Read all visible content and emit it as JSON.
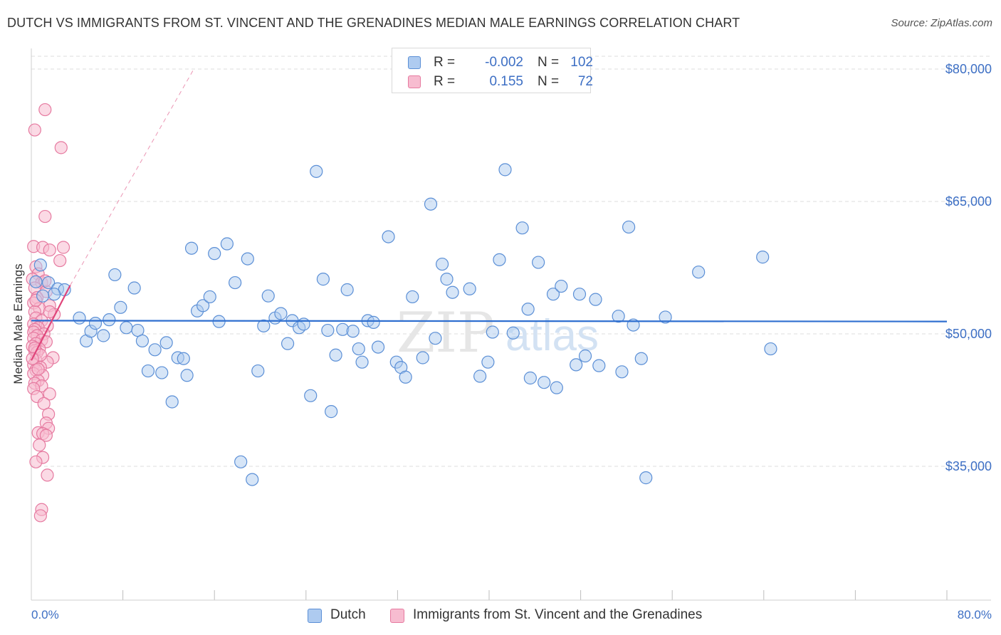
{
  "title": "DUTCH VS IMMIGRANTS FROM ST. VINCENT AND THE GRENADINES MEDIAN MALE EARNINGS CORRELATION CHART",
  "source": "Source: ZipAtlas.com",
  "watermark": {
    "part1": "ZIP",
    "part2": "atlas"
  },
  "legend": {
    "rows": [
      {
        "r_label": "R =",
        "r_value": "-0.002",
        "n_label": "N =",
        "n_value": "102"
      },
      {
        "r_label": "R =",
        "r_value": "0.155",
        "n_label": "N =",
        "n_value": "72"
      }
    ]
  },
  "bottom_legend": {
    "dutch": "Dutch",
    "immigrants": "Immigrants from St. Vincent and the Grenadines"
  },
  "colors": {
    "dutch_fill": "#aecbf0",
    "dutch_stroke": "#5b8fd6",
    "dutch_line": "#2f6fd0",
    "immig_fill": "#f7bcd0",
    "immig_stroke": "#e67aa0",
    "immig_line": "#e0457a",
    "grid": "#dcdcdc",
    "tick_text": "#3d6fc4"
  },
  "chart_data": {
    "type": "scatter",
    "title": "DUTCH VS IMMIGRANTS FROM ST. VINCENT AND THE GRENADINES MEDIAN MALE EARNINGS CORRELATION CHART",
    "xlabel": "",
    "ylabel": "Median Male Earnings",
    "xlim": [
      0,
      80
    ],
    "ylim": [
      20000,
      83000
    ],
    "x_tick_labels": [
      "0.0%",
      "80.0%"
    ],
    "y_ticks": [
      35000,
      50000,
      65000,
      80000
    ],
    "y_tick_labels": [
      "$35,000",
      "$50,000",
      "$65,000",
      "$80,000"
    ],
    "grid": true,
    "legend_position": "top-center",
    "series": [
      {
        "name": "Dutch",
        "color": "#5b8fd6",
        "trend": {
          "x": [
            0,
            80
          ],
          "y": [
            51500,
            51400
          ]
        },
        "points": [
          [
            0.8,
            57800
          ],
          [
            1.5,
            55800
          ],
          [
            2.3,
            55100
          ],
          [
            2.9,
            55000
          ],
          [
            2.0,
            54500
          ],
          [
            4.2,
            51800
          ],
          [
            4.8,
            49200
          ],
          [
            5.2,
            50300
          ],
          [
            5.6,
            51200
          ],
          [
            6.3,
            49800
          ],
          [
            6.8,
            51600
          ],
          [
            7.3,
            56700
          ],
          [
            7.8,
            53000
          ],
          [
            8.3,
            50700
          ],
          [
            9.0,
            55200
          ],
          [
            9.3,
            50400
          ],
          [
            9.7,
            49200
          ],
          [
            10.2,
            45800
          ],
          [
            10.8,
            48200
          ],
          [
            11.4,
            45600
          ],
          [
            11.8,
            49000
          ],
          [
            12.3,
            42300
          ],
          [
            12.8,
            47300
          ],
          [
            13.3,
            47200
          ],
          [
            13.6,
            45300
          ],
          [
            14.0,
            59700
          ],
          [
            14.5,
            52600
          ],
          [
            15.0,
            53200
          ],
          [
            15.6,
            54200
          ],
          [
            16.0,
            59100
          ],
          [
            16.4,
            51400
          ],
          [
            17.1,
            60200
          ],
          [
            17.8,
            55800
          ],
          [
            18.3,
            35500
          ],
          [
            18.9,
            58500
          ],
          [
            19.3,
            33500
          ],
          [
            19.8,
            45800
          ],
          [
            20.3,
            50900
          ],
          [
            20.7,
            54300
          ],
          [
            21.3,
            51800
          ],
          [
            21.8,
            52300
          ],
          [
            22.4,
            48900
          ],
          [
            22.8,
            51500
          ],
          [
            23.4,
            50700
          ],
          [
            23.8,
            51100
          ],
          [
            24.4,
            43000
          ],
          [
            24.9,
            68400
          ],
          [
            25.5,
            56200
          ],
          [
            25.9,
            50400
          ],
          [
            26.2,
            41200
          ],
          [
            26.6,
            47600
          ],
          [
            27.2,
            50500
          ],
          [
            27.6,
            55000
          ],
          [
            28.1,
            50300
          ],
          [
            28.6,
            48300
          ],
          [
            28.9,
            46800
          ],
          [
            29.4,
            51500
          ],
          [
            29.9,
            51300
          ],
          [
            30.3,
            48500
          ],
          [
            31.2,
            61000
          ],
          [
            31.9,
            46800
          ],
          [
            32.3,
            46200
          ],
          [
            32.7,
            45100
          ],
          [
            33.3,
            54200
          ],
          [
            34.2,
            47300
          ],
          [
            34.9,
            64700
          ],
          [
            35.3,
            49500
          ],
          [
            35.9,
            57900
          ],
          [
            36.3,
            56200
          ],
          [
            36.8,
            54700
          ],
          [
            38.3,
            55100
          ],
          [
            39.2,
            45200
          ],
          [
            39.9,
            46800
          ],
          [
            40.3,
            50200
          ],
          [
            40.9,
            58400
          ],
          [
            41.4,
            68600
          ],
          [
            42.1,
            50100
          ],
          [
            42.9,
            62000
          ],
          [
            43.4,
            52800
          ],
          [
            43.6,
            45000
          ],
          [
            44.3,
            58100
          ],
          [
            44.8,
            44500
          ],
          [
            45.6,
            54500
          ],
          [
            45.9,
            43900
          ],
          [
            46.3,
            55400
          ],
          [
            47.6,
            46500
          ],
          [
            47.9,
            54500
          ],
          [
            48.4,
            47500
          ],
          [
            49.3,
            53900
          ],
          [
            49.6,
            46400
          ],
          [
            51.3,
            52000
          ],
          [
            51.6,
            45700
          ],
          [
            52.2,
            62100
          ],
          [
            52.6,
            51000
          ],
          [
            53.7,
            33700
          ],
          [
            53.3,
            47200
          ],
          [
            55.4,
            51900
          ],
          [
            58.3,
            57000
          ],
          [
            63.9,
            58700
          ],
          [
            64.6,
            48300
          ],
          [
            0.4,
            55900
          ],
          [
            1.0,
            54300
          ]
        ]
      },
      {
        "name": "Immigrants from St. Vincent and the Grenadines",
        "color": "#e67aa0",
        "trend": {
          "x": [
            0,
            3.4
          ],
          "y": [
            47000,
            55500
          ]
        },
        "trend_extension": {
          "x": [
            3.4,
            14.2
          ],
          "y": [
            55500,
            80000
          ]
        },
        "points": [
          [
            1.2,
            75400
          ],
          [
            0.3,
            73100
          ],
          [
            2.6,
            71100
          ],
          [
            1.2,
            63300
          ],
          [
            0.2,
            59900
          ],
          [
            1.0,
            59800
          ],
          [
            2.8,
            59800
          ],
          [
            1.6,
            59500
          ],
          [
            2.5,
            58300
          ],
          [
            0.4,
            57600
          ],
          [
            0.6,
            56800
          ],
          [
            0.1,
            56200
          ],
          [
            0.9,
            55800
          ],
          [
            0.3,
            55200
          ],
          [
            1.3,
            54800
          ],
          [
            0.5,
            54100
          ],
          [
            0.2,
            53500
          ],
          [
            1.6,
            53200
          ],
          [
            0.7,
            52900
          ],
          [
            0.3,
            52500
          ],
          [
            2.0,
            52200
          ],
          [
            0.4,
            51800
          ],
          [
            0.9,
            51500
          ],
          [
            0.2,
            51100
          ],
          [
            1.4,
            50900
          ],
          [
            0.6,
            50700
          ],
          [
            0.3,
            50500
          ],
          [
            0.2,
            50200
          ],
          [
            1.1,
            50000
          ],
          [
            0.5,
            49800
          ],
          [
            0.2,
            49500
          ],
          [
            0.9,
            49300
          ],
          [
            1.3,
            49100
          ],
          [
            0.4,
            48900
          ],
          [
            0.1,
            48600
          ],
          [
            0.7,
            48300
          ],
          [
            0.3,
            48100
          ],
          [
            0.5,
            47900
          ],
          [
            1.9,
            47300
          ],
          [
            0.4,
            47000
          ],
          [
            1.4,
            46800
          ],
          [
            0.2,
            46500
          ],
          [
            0.8,
            46200
          ],
          [
            0.4,
            45900
          ],
          [
            0.2,
            45500
          ],
          [
            1.0,
            45300
          ],
          [
            0.6,
            44700
          ],
          [
            0.3,
            44400
          ],
          [
            0.9,
            44100
          ],
          [
            0.2,
            43800
          ],
          [
            1.6,
            43200
          ],
          [
            0.5,
            42900
          ],
          [
            1.1,
            42100
          ],
          [
            1.5,
            40900
          ],
          [
            1.3,
            39900
          ],
          [
            1.5,
            39300
          ],
          [
            0.6,
            38800
          ],
          [
            1.0,
            38700
          ],
          [
            1.3,
            38500
          ],
          [
            0.7,
            37400
          ],
          [
            1.0,
            36000
          ],
          [
            0.4,
            35500
          ],
          [
            1.4,
            34000
          ],
          [
            0.9,
            30100
          ],
          [
            0.8,
            29400
          ],
          [
            0.3,
            48400
          ],
          [
            0.8,
            47600
          ],
          [
            1.6,
            52500
          ],
          [
            0.4,
            53800
          ],
          [
            1.2,
            56000
          ],
          [
            0.1,
            47200
          ],
          [
            0.6,
            46000
          ]
        ]
      }
    ]
  }
}
